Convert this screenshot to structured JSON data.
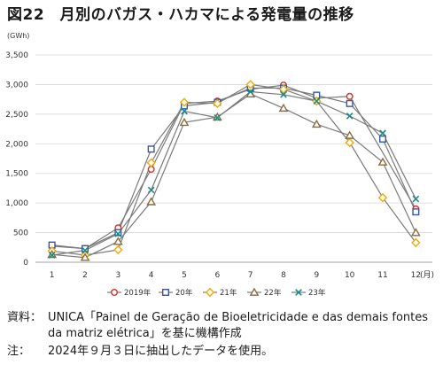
{
  "title": "図22　月別のバガス・ハカマによる発電量の推移",
  "chart_data": {
    "type": "line",
    "ylabel": "(GWh)",
    "xlabel": "(月)",
    "ylim": [
      0,
      3500
    ],
    "yticks": [
      0,
      500,
      1000,
      1500,
      2000,
      2500,
      3000,
      3500
    ],
    "ytick_labels": [
      "0",
      "500",
      "1,000",
      "1,500",
      "2,000",
      "2,500",
      "3,000",
      "3,500"
    ],
    "categories": [
      "1",
      "2",
      "3",
      "4",
      "5",
      "6",
      "7",
      "8",
      "9",
      "10",
      "11",
      "12"
    ],
    "grid": true,
    "legend_position": "bottom",
    "series": [
      {
        "name": "2019年",
        "marker": "circle",
        "color": "#d73027",
        "values": [
          270,
          230,
          580,
          1570,
          2680,
          2720,
          2920,
          2990,
          2770,
          2800,
          null,
          900
        ]
      },
      {
        "name": "20年",
        "marker": "square",
        "color": "#3a55a4",
        "values": [
          290,
          230,
          500,
          1910,
          2640,
          2700,
          2940,
          2940,
          2820,
          2680,
          2080,
          850
        ]
      },
      {
        "name": "21年",
        "marker": "diamond",
        "color": "#f2a900",
        "values": [
          190,
          120,
          210,
          1680,
          2700,
          2680,
          3000,
          2920,
          2720,
          2020,
          1090,
          330
        ]
      },
      {
        "name": "22年",
        "marker": "triangle",
        "color": "#8a6d3b",
        "values": [
          130,
          80,
          350,
          1020,
          2360,
          2450,
          2840,
          2600,
          2330,
          2140,
          1690,
          500
        ]
      },
      {
        "name": "23年",
        "marker": "x",
        "color": "#1a8a8a",
        "values": [
          120,
          200,
          480,
          1220,
          2550,
          2440,
          2880,
          2830,
          2720,
          2470,
          2180,
          1070
        ]
      }
    ]
  },
  "notes": {
    "source_label": "資料：",
    "source_text": "UNICA「Painel de Geração de Bioeletricidade e das demais fontes da matriz elétrica」を基に機構作成",
    "note_label": "注：",
    "note_text": "2024年９月３日に抽出したデータを使用。"
  }
}
